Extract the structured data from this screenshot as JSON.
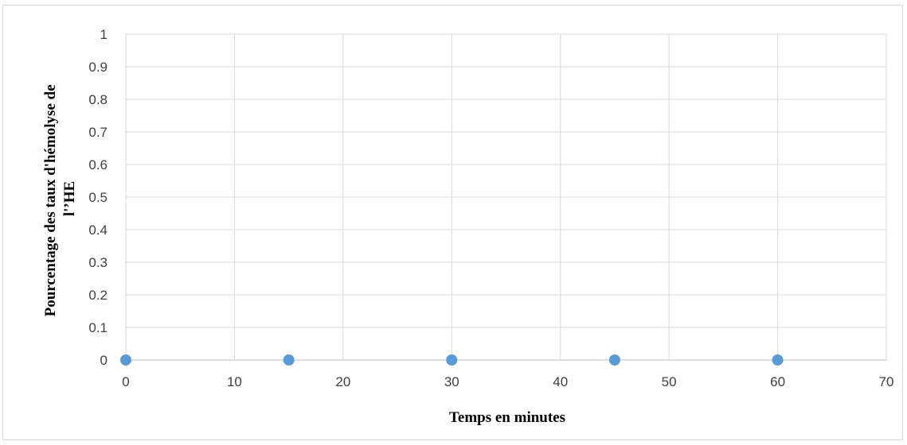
{
  "chart_data": {
    "type": "scatter",
    "title": "",
    "xlabel": "Temps  en minutes",
    "ylabel_lines": [
      "Pourcentage des taux d'hémolyse de",
      "l'’HE"
    ],
    "xlim": [
      0,
      70
    ],
    "ylim": [
      0,
      1
    ],
    "x_ticks": [
      "0",
      "10",
      "20",
      "30",
      "40",
      "50",
      "60",
      "70"
    ],
    "y_ticks": [
      "0",
      "0.1",
      "0.2",
      "0.3",
      "0.4",
      "0.5",
      "0.6",
      "0.7",
      "0.8",
      "0.9",
      "1"
    ],
    "grid": true,
    "legend": "none",
    "marker_color": "#5b9bd5",
    "series": [
      {
        "x": [
          0,
          15,
          30,
          45,
          60
        ],
        "y": [
          0,
          0,
          0,
          0,
          0
        ]
      }
    ]
  }
}
